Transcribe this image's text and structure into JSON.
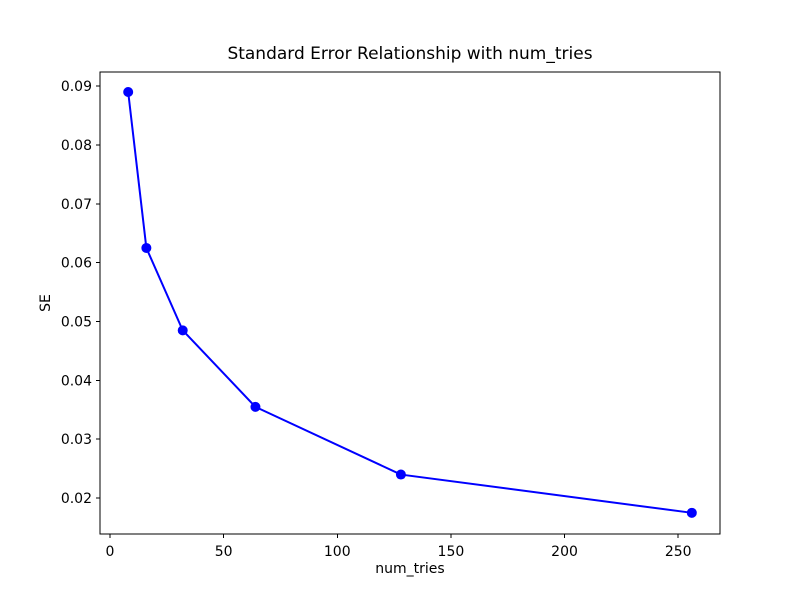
{
  "chart_data": {
    "type": "line",
    "title": "Standard Error Relationship with num_tries",
    "xlabel": "num_tries",
    "ylabel": "SE",
    "x": [
      8,
      16,
      32,
      64,
      128,
      256
    ],
    "y": [
      0.089,
      0.0625,
      0.0485,
      0.0355,
      0.024,
      0.0175
    ],
    "xticks": [
      0,
      50,
      100,
      150,
      200,
      250
    ],
    "yticks": [
      0.02,
      0.03,
      0.04,
      0.05,
      0.06,
      0.07,
      0.08,
      0.09
    ],
    "ytick_decimals": 2,
    "xlim": [
      -4.4,
      268.4
    ],
    "ylim": [
      0.0139,
      0.0924
    ],
    "grid": false,
    "line_color": "#0000ff",
    "marker": "circle",
    "background_color": "#ffffff",
    "axis_color": "#000000",
    "text_color": "#000000"
  }
}
